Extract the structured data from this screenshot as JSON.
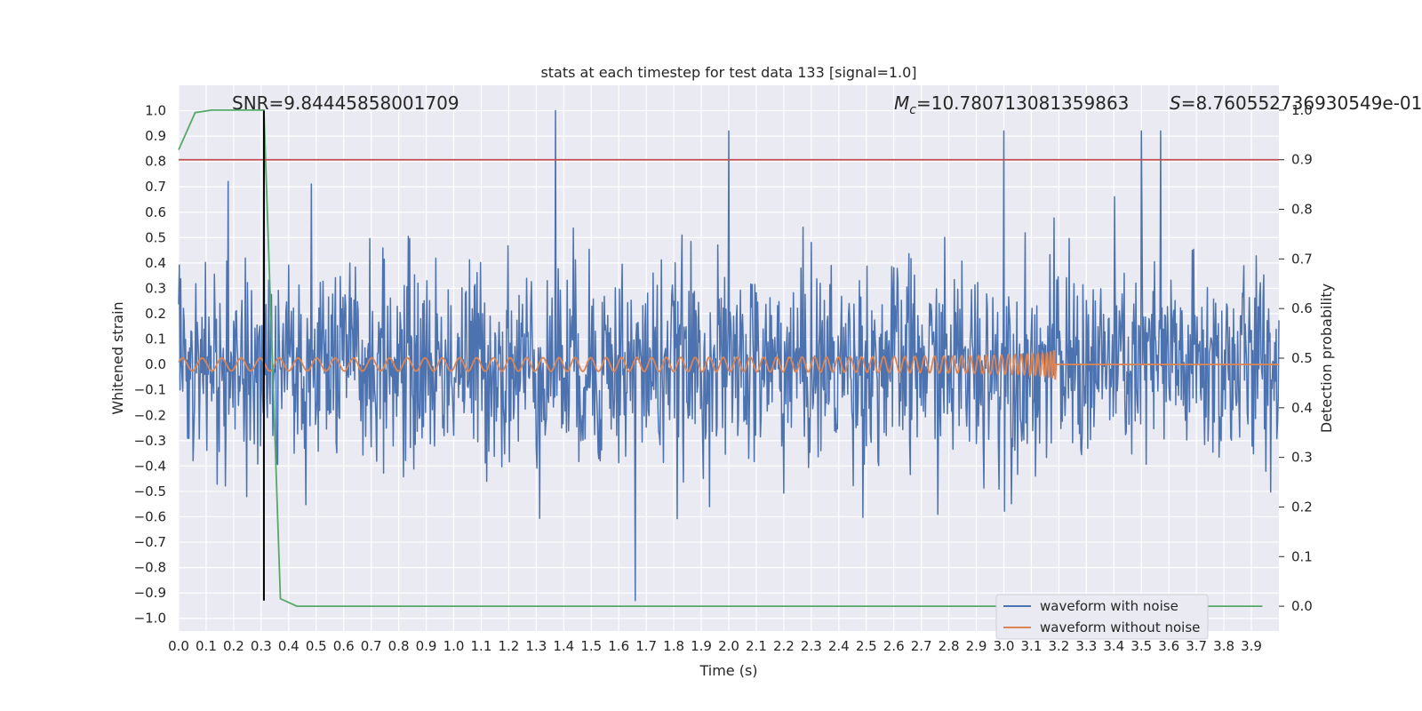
{
  "chart_data": {
    "type": "line",
    "title": "stats at each timestep for test data 133 [signal=1.0]",
    "xlabel": "Time (s)",
    "ylabel": "Whitened strain",
    "ylabel_right": "Detection probability",
    "xlim": [
      0.0,
      4.0
    ],
    "ylim": [
      -1.05,
      1.1
    ],
    "ylim_right": [
      -0.05,
      1.05
    ],
    "grid": true,
    "legend_position": "lower-right",
    "x_ticks": [
      "0.0",
      "0.1",
      "0.2",
      "0.3",
      "0.4",
      "0.5",
      "0.6",
      "0.7",
      "0.8",
      "0.9",
      "1.0",
      "1.1",
      "1.2",
      "1.3",
      "1.4",
      "1.5",
      "1.6",
      "1.7",
      "1.8",
      "1.9",
      "2.0",
      "2.1",
      "2.2",
      "2.3",
      "2.4",
      "2.5",
      "2.6",
      "2.7",
      "2.8",
      "2.9",
      "3.0",
      "3.1",
      "3.2",
      "3.3",
      "3.4",
      "3.5",
      "3.6",
      "3.7",
      "3.8",
      "3.9"
    ],
    "y_ticks": [
      "1.0",
      "0.9",
      "0.8",
      "0.7",
      "0.6",
      "0.5",
      "0.4",
      "0.3",
      "0.2",
      "0.1",
      "0.0",
      "−0.1",
      "−0.2",
      "−0.3",
      "−0.4",
      "−0.5",
      "−0.6",
      "−0.7",
      "−0.8",
      "−0.9",
      "−1.0"
    ],
    "y_ticks_right": [
      "1.0",
      "0.9",
      "0.8",
      "0.7",
      "0.6",
      "0.5",
      "0.4",
      "0.3",
      "0.2",
      "0.1",
      "0.0"
    ],
    "annotations": {
      "snr": "SNR=9.84445858001709",
      "mc_symbol": "M",
      "mc_sub": "c",
      "mc_value": "=10.780713081359863",
      "s_symbol": "S",
      "s_value": "=8.760552736930549e-01"
    },
    "series": [
      {
        "name": "waveform with noise",
        "color": "#4c72b0",
        "description": "noisy whitened strain, approx. gaussian noise with std ~0.2, peaks near 1.0 at t=1.37 and -0.93 at t=1.66",
        "noise_std": 0.2,
        "sample_count": 1600,
        "notable_peaks": [
          [
            1.37,
            1.0
          ],
          [
            1.66,
            -0.93
          ],
          [
            0.31,
            0.95
          ],
          [
            3.5,
            0.92
          ],
          [
            3.57,
            0.92
          ],
          [
            2.0,
            0.92
          ],
          [
            3.0,
            0.92
          ]
        ]
      },
      {
        "name": "waveform without noise",
        "color": "#dd8452",
        "description": "gravitational-wave chirp, oscillation with increasing frequency and amplitude until merger at t=3.19, zero afterwards",
        "merger_time": 3.19,
        "amplitude_start": 0.025,
        "amplitude_end": 0.31
      }
    ],
    "detection_probability": {
      "color": "#55a868",
      "axis": "right",
      "points": [
        [
          0.0,
          0.92
        ],
        [
          0.06,
          0.995
        ],
        [
          0.12,
          1.0
        ],
        [
          0.31,
          1.0
        ],
        [
          0.37,
          0.015
        ],
        [
          0.43,
          0.0
        ],
        [
          3.94,
          0.0
        ]
      ]
    },
    "threshold_line": {
      "color": "#c44e52",
      "axis": "right",
      "value": 0.9
    },
    "vertical_marker": {
      "color": "#000000",
      "x": 0.31,
      "y_range": [
        -0.93,
        1.0
      ]
    }
  }
}
